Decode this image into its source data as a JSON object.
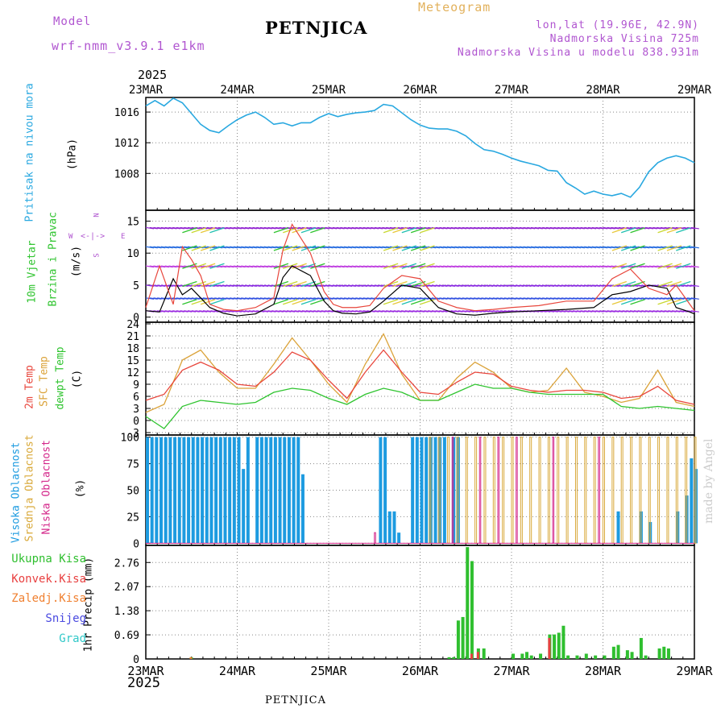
{
  "header": {
    "model_label": "Model",
    "model_name": "wrf-nmm_v3.9.1  e1km",
    "station_title": "PETNJICA",
    "meteogram_label": "Meteogram",
    "lonlat": "lon,lat (19.96E, 42.9N)",
    "altitude": "Nadmorska Visina 725m",
    "model_altitude": "Nadmorska Visina u modelu 838.931m"
  },
  "footer": {
    "station": "PETNJICA",
    "credit": "made by Angel"
  },
  "time_axis": {
    "top_year": "2025",
    "bottom_year": "2025",
    "labels": [
      "23MAR",
      "24MAR",
      "25MAR",
      "26MAR",
      "27MAR",
      "28MAR",
      "29MAR"
    ]
  },
  "panel_labels": {
    "pressure": {
      "name": "Pritisak na nivou mora",
      "unit": "(hPa)"
    },
    "wind": {
      "name1": "10m Vjetar",
      "name2": "Brzina i Pravac",
      "unit": "(m/s)",
      "compass": "N",
      "compass_s": "S",
      "compass_w": "W",
      "compass_e": "E"
    },
    "temp": {
      "l1": "2m Temp",
      "l2": "SFC Temp",
      "l3": "dewpt Temp",
      "unit": "(C)"
    },
    "cloud": {
      "l1": "Visoka Oblacnost",
      "l2": "Srednja Oblacnost",
      "l3": "Niska Oblacnost",
      "unit": "(%)"
    },
    "precip": {
      "unit": "1hr Precip (mm)",
      "legend": [
        "Ukupna Kisa",
        "Konvek.Kisa",
        "Zaledj.Kisa",
        "Snijeg",
        "Grad"
      ]
    }
  },
  "colors": {
    "pressure": "#29a8e0",
    "temp2m": "#e8463c",
    "sfc": "#dba33a",
    "dewpt": "#2fc42f",
    "cloud_high": "#1d9be0",
    "cloud_mid": "#d9a93a",
    "cloud_low": "#d4268a",
    "rain": "#2fbf2f",
    "conv": "#e84040",
    "frz": "#f08030",
    "snow": "#4a4ae0",
    "hail": "#30c8c8",
    "title_purple": "#b055d0",
    "meteogram_gold": "#e2b15c"
  },
  "chart_data": [
    {
      "type": "line",
      "title": "Pritisak na nivou mora",
      "ylabel": "(hPa)",
      "ylim": [
        1003.2,
        1017.9
      ],
      "yticks": [
        1008,
        1012,
        1016
      ],
      "x": [
        0,
        0.1,
        0.2,
        0.3,
        0.4,
        0.5,
        0.6,
        0.7,
        0.8,
        0.9,
        1.0,
        1.1,
        1.2,
        1.3,
        1.4,
        1.5,
        1.6,
        1.7,
        1.8,
        1.9,
        2.0,
        2.1,
        2.2,
        2.3,
        2.4,
        2.5,
        2.6,
        2.7,
        2.8,
        2.9,
        3.0,
        3.1,
        3.2,
        3.3,
        3.4,
        3.5,
        3.6,
        3.7,
        3.8,
        3.9,
        4.0,
        4.1,
        4.2,
        4.3,
        4.4,
        4.5,
        4.6,
        4.7,
        4.8,
        4.9,
        5.0,
        5.1,
        5.2,
        5.3,
        5.4,
        5.5,
        5.6,
        5.7,
        5.8,
        5.9,
        6.0
      ],
      "values": [
        1016.8,
        1017.5,
        1016.8,
        1017.8,
        1017.2,
        1015.8,
        1014.4,
        1013.6,
        1013.3,
        1014.2,
        1015.0,
        1015.6,
        1016.0,
        1015.3,
        1014.4,
        1014.6,
        1014.2,
        1014.6,
        1014.6,
        1015.3,
        1015.8,
        1015.4,
        1015.7,
        1015.9,
        1016.0,
        1016.2,
        1017.0,
        1016.8,
        1015.9,
        1015.0,
        1014.3,
        1013.9,
        1013.8,
        1013.8,
        1013.5,
        1012.9,
        1011.9,
        1011.1,
        1010.9,
        1010.5,
        1010.0,
        1009.6,
        1009.3,
        1009.0,
        1008.4,
        1008.3,
        1006.8,
        1006.1,
        1005.3,
        1005.7,
        1005.3,
        1005.1,
        1005.4,
        1004.9,
        1006.2,
        1008.2,
        1009.4,
        1010.0,
        1010.3,
        1010.0,
        1009.4
      ]
    },
    {
      "type": "line",
      "title": "10m Vjetar Brzina i Pravac",
      "ylabel": "(m/s)",
      "ylim": [
        -0.8,
        16.7
      ],
      "yticks": [
        0,
        5,
        10,
        15
      ],
      "x": [
        0,
        0.15,
        0.3,
        0.4,
        0.5,
        0.6,
        0.7,
        0.85,
        1.0,
        1.2,
        1.4,
        1.5,
        1.6,
        1.8,
        1.95,
        2.05,
        2.15,
        2.3,
        2.45,
        2.6,
        2.8,
        3.0,
        3.2,
        3.4,
        3.6,
        3.8,
        4.0,
        4.3,
        4.6,
        4.9,
        5.1,
        5.3,
        5.5,
        5.7,
        5.8,
        5.95,
        6.0
      ],
      "series": [
        {
          "values": [
            1.0,
            0.8,
            6.0,
            3.5,
            4.5,
            3.0,
            1.5,
            0.6,
            0.2,
            0.5,
            2.0,
            6.2,
            8.0,
            6.5,
            2.5,
            1.0,
            0.6,
            0.5,
            0.8,
            2.5,
            5.0,
            4.5,
            1.5,
            0.5,
            0.3,
            0.6,
            0.8,
            1.0,
            1.2,
            1.5,
            3.5,
            4.0,
            5.0,
            4.5,
            1.5,
            0.8,
            0.5
          ]
        },
        {
          "values": [
            1.5,
            8.0,
            2.0,
            11.0,
            9.0,
            6.5,
            2.0,
            1.2,
            1.0,
            1.5,
            3.0,
            10.5,
            14.5,
            10.0,
            4.0,
            2.0,
            1.5,
            1.5,
            1.8,
            4.5,
            6.5,
            6.0,
            2.5,
            1.5,
            1.0,
            1.2,
            1.5,
            1.8,
            2.5,
            2.5,
            6.0,
            7.5,
            4.5,
            3.5,
            5.0,
            2.0,
            1.0
          ]
        }
      ]
    },
    {
      "type": "line",
      "ylabel": "(C)",
      "ylim": [
        -3.6,
        24.4
      ],
      "yticks": [
        -3,
        0,
        3,
        6,
        9,
        12,
        15,
        18,
        21,
        24
      ],
      "x": [
        0,
        0.2,
        0.4,
        0.6,
        0.8,
        1.0,
        1.2,
        1.4,
        1.6,
        1.8,
        2.0,
        2.2,
        2.4,
        2.6,
        2.8,
        3.0,
        3.2,
        3.4,
        3.6,
        3.8,
        4.0,
        4.2,
        4.4,
        4.6,
        4.8,
        5.0,
        5.2,
        5.4,
        5.6,
        5.8,
        6.0
      ],
      "series": [
        {
          "name": "2m Temp",
          "values": [
            5.0,
            6.5,
            12.5,
            14.5,
            12.5,
            9.0,
            8.5,
            12.0,
            17.0,
            15.0,
            10.0,
            5.5,
            12.0,
            17.5,
            12.0,
            7.0,
            6.5,
            9.5,
            12.0,
            11.5,
            8.5,
            7.5,
            7.0,
            7.5,
            7.5,
            7.0,
            5.5,
            6.0,
            8.5,
            5.0,
            4.0
          ]
        },
        {
          "name": "SFC Temp",
          "values": [
            2.0,
            4.0,
            15.0,
            17.5,
            12.0,
            8.0,
            8.0,
            14.0,
            20.5,
            15.0,
            9.0,
            4.5,
            14.0,
            21.5,
            11.5,
            5.0,
            5.0,
            10.5,
            14.5,
            12.0,
            8.0,
            7.0,
            7.5,
            13.0,
            7.0,
            6.0,
            4.5,
            5.5,
            12.5,
            4.5,
            3.5
          ]
        },
        {
          "name": "dewpt Temp",
          "values": [
            1.0,
            -2.0,
            3.5,
            5.0,
            4.5,
            4.0,
            4.5,
            7.0,
            8.0,
            7.5,
            5.5,
            4.0,
            6.5,
            8.0,
            7.0,
            5.0,
            5.0,
            7.0,
            9.0,
            8.0,
            8.0,
            7.0,
            6.5,
            6.5,
            6.5,
            6.5,
            3.5,
            3.0,
            3.5,
            3.0,
            2.5
          ]
        }
      ]
    },
    {
      "type": "bar",
      "ylabel": "(%)",
      "ylim": [
        -2,
        102
      ],
      "yticks": [
        0,
        25,
        50,
        75,
        100
      ],
      "series": [
        {
          "name": "Visoka Oblacnost",
          "x": [
            0.0,
            0.05,
            0.1,
            0.15,
            0.2,
            0.25,
            0.3,
            0.35,
            0.4,
            0.45,
            0.5,
            0.55,
            0.6,
            0.65,
            0.7,
            0.75,
            0.8,
            0.85,
            0.9,
            0.95,
            1.0,
            1.05,
            1.1,
            1.2,
            1.25,
            1.3,
            1.35,
            1.4,
            1.45,
            1.5,
            1.55,
            1.6,
            1.65,
            1.7,
            2.55,
            2.6,
            2.65,
            2.7,
            2.75,
            2.9,
            2.95,
            3.0,
            3.05,
            3.1,
            3.15,
            3.2,
            3.25,
            3.35,
            3.4,
            5.15,
            5.4,
            5.5,
            5.8,
            5.9,
            5.95,
            6.0
          ],
          "values": [
            100,
            100,
            100,
            100,
            100,
            100,
            100,
            100,
            100,
            100,
            100,
            100,
            100,
            100,
            100,
            100,
            100,
            100,
            100,
            100,
            100,
            70,
            100,
            100,
            100,
            100,
            100,
            100,
            100,
            100,
            100,
            100,
            100,
            65,
            100,
            100,
            30,
            30,
            10,
            100,
            100,
            100,
            100,
            100,
            100,
            100,
            100,
            100,
            100,
            30,
            30,
            20,
            30,
            45,
            80,
            70
          ]
        },
        {
          "name": "Srednja Oblacnost",
          "x": [
            3.1,
            3.2,
            3.3,
            3.4,
            3.5,
            3.6,
            3.7,
            3.8,
            3.9,
            4.0,
            4.1,
            4.2,
            4.3,
            4.4,
            4.5,
            4.6,
            4.7,
            4.8,
            4.9,
            5.0,
            5.1,
            5.2,
            5.3,
            5.4,
            5.5,
            5.6,
            5.7,
            5.8,
            5.9,
            6.0
          ],
          "values": [
            100,
            100,
            100,
            100,
            100,
            100,
            100,
            100,
            100,
            100,
            100,
            100,
            100,
            100,
            100,
            100,
            100,
            100,
            100,
            100,
            100,
            100,
            100,
            100,
            100,
            100,
            100,
            100,
            100,
            100
          ]
        },
        {
          "name": "Niska Oblacnost",
          "x": [
            2.5,
            3.35,
            3.65,
            3.85,
            4.05,
            4.45,
            4.95
          ],
          "values": [
            10,
            100,
            100,
            100,
            100,
            100,
            100
          ]
        }
      ]
    },
    {
      "type": "bar",
      "ylabel": "1hr Precip (mm)",
      "ylim": [
        0,
        3.25
      ],
      "yticks": [
        0,
        0.69,
        1.38,
        2.07,
        2.76
      ],
      "series": [
        {
          "name": "Ukupna Kisa",
          "x": [
            0.48,
            3.3,
            3.35,
            3.4,
            3.45,
            3.5,
            3.55,
            3.62,
            3.68,
            4.0,
            4.1,
            4.15,
            4.2,
            4.3,
            4.4,
            4.45,
            4.5,
            4.55,
            4.6,
            4.7,
            4.8,
            4.9,
            5.0,
            5.1,
            5.15,
            5.25,
            5.3,
            5.4,
            5.45,
            5.6,
            5.65,
            5.7
          ],
          "values": [
            0.05,
            0.05,
            0.05,
            1.1,
            1.2,
            3.2,
            2.8,
            0.3,
            0.3,
            0.15,
            0.15,
            0.2,
            0.1,
            0.15,
            0.7,
            0.7,
            0.75,
            0.95,
            0.1,
            0.1,
            0.15,
            0.1,
            0.1,
            0.35,
            0.4,
            0.25,
            0.2,
            0.6,
            0.1,
            0.3,
            0.35,
            0.3
          ]
        },
        {
          "name": "Konvek.Kisa",
          "x": [
            3.55,
            3.62,
            4.4
          ],
          "values": [
            0.15,
            0.2,
            0.6
          ]
        },
        {
          "name": "Zaledj.Kisa",
          "x": [
            0.48
          ],
          "values": [
            0.05
          ]
        }
      ]
    }
  ]
}
